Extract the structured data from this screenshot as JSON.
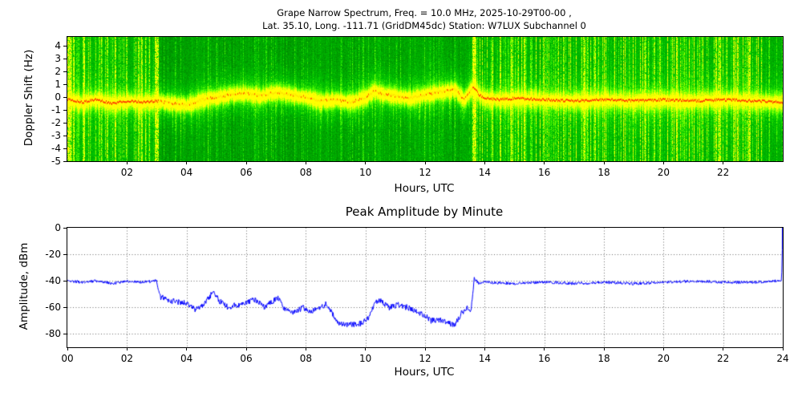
{
  "figure": {
    "background": "#ffffff",
    "spectrogram_colors": {
      "dark_green": "#0e7a00",
      "bright_yellow": "#ffff00",
      "trace_red": "#ff2600"
    },
    "amplitude_line_color": "#0000ff"
  },
  "chart_data": [
    {
      "type": "heatmap",
      "title_line1": "Grape Narrow Spectrum, Freq. = 10.0 MHz, 2025-10-29T00-00 ,",
      "title_line2": "Lat.  35.10, Long. -111.71 (GridDM45dc) Station: W7LUX Subchannel 0",
      "xlabel": "Hours, UTC",
      "ylabel": "Doppler Shift (Hz)",
      "xlim": [
        0,
        24
      ],
      "ylim": [
        -5,
        4.7
      ],
      "xtick_values": [
        2,
        4,
        6,
        8,
        10,
        12,
        14,
        16,
        18,
        20,
        22
      ],
      "xtick_labels": [
        "02",
        "04",
        "06",
        "08",
        "10",
        "12",
        "14",
        "16",
        "18",
        "20",
        "22"
      ],
      "ytick_values": [
        4,
        3,
        2,
        1,
        0,
        -1,
        -2,
        -3,
        -4,
        -5
      ],
      "ytick_labels": [
        "4",
        "3",
        "2",
        "1",
        "0",
        "-1",
        "-2",
        "-3",
        "-4",
        "-5"
      ],
      "colormap": "green-to-yellow, red carrier trace",
      "noisy_intervals_hours": [
        [
          0,
          3.05
        ],
        [
          13.6,
          24
        ]
      ],
      "quiet_interval_hours": [
        3.05,
        13.6
      ],
      "summary": "Doppler spectrogram near 0 Hz carrier; broadband vertical RFI striping before ~03:03 and after ~13:36 UTC; fuzzy yellow carrier band wandering between +1 and -1 Hz during the quiet interval",
      "doppler_trace_hz": [
        [
          0,
          -0.2
        ],
        [
          0.5,
          -0.4
        ],
        [
          1,
          -0.2
        ],
        [
          1.5,
          -0.5
        ],
        [
          2,
          -0.3
        ],
        [
          2.5,
          -0.4
        ],
        [
          3,
          -0.3
        ],
        [
          3.5,
          -0.5
        ],
        [
          4,
          -0.6
        ],
        [
          4.5,
          -0.2
        ],
        [
          5,
          0.0
        ],
        [
          5.5,
          0.2
        ],
        [
          6,
          0.3
        ],
        [
          6.5,
          0.1
        ],
        [
          7,
          0.4
        ],
        [
          7.5,
          0.2
        ],
        [
          8,
          0.0
        ],
        [
          8.5,
          -0.3
        ],
        [
          9,
          -0.2
        ],
        [
          9.5,
          -0.4
        ],
        [
          10,
          0.0
        ],
        [
          10.3,
          0.5
        ],
        [
          10.6,
          0.2
        ],
        [
          11,
          0.1
        ],
        [
          11.5,
          -0.1
        ],
        [
          12,
          0.2
        ],
        [
          12.5,
          0.4
        ],
        [
          13,
          0.6
        ],
        [
          13.3,
          -0.2
        ],
        [
          13.6,
          0.8
        ],
        [
          13.8,
          0.2
        ],
        [
          14,
          -0.1
        ],
        [
          14.5,
          -0.2
        ],
        [
          15,
          -0.1
        ],
        [
          16,
          -0.2
        ],
        [
          17,
          -0.3
        ],
        [
          18,
          -0.2
        ],
        [
          19,
          -0.3
        ],
        [
          20,
          -0.2
        ],
        [
          21,
          -0.3
        ],
        [
          22,
          -0.2
        ],
        [
          23,
          -0.3
        ],
        [
          24,
          -0.4
        ]
      ]
    },
    {
      "type": "line",
      "title": "Peak Amplitude by Minute",
      "xlabel": "Hours, UTC",
      "ylabel": "Amplitude, dBm",
      "xlim": [
        0,
        24
      ],
      "ylim": [
        -90,
        0
      ],
      "xtick_values": [
        0,
        2,
        4,
        6,
        8,
        10,
        12,
        14,
        16,
        18,
        20,
        22,
        24
      ],
      "xtick_labels": [
        "00",
        "02",
        "04",
        "06",
        "08",
        "10",
        "12",
        "14",
        "16",
        "18",
        "20",
        "22",
        "24"
      ],
      "ytick_values": [
        0,
        -20,
        -40,
        -60,
        -80
      ],
      "ytick_labels": [
        "0",
        "-20",
        "-40",
        "-60",
        "-80"
      ],
      "grid": true,
      "legend": "none",
      "series": [
        {
          "name": "peak_amplitude_dBm",
          "keypoints_hour_dbm": [
            [
              0,
              -40
            ],
            [
              0.5,
              -41
            ],
            [
              1,
              -40
            ],
            [
              1.5,
              -42
            ],
            [
              2,
              -40
            ],
            [
              2.5,
              -41
            ],
            [
              3.0,
              -40
            ],
            [
              3.1,
              -52
            ],
            [
              3.5,
              -55
            ],
            [
              4,
              -57
            ],
            [
              4.3,
              -62
            ],
            [
              4.6,
              -57
            ],
            [
              4.9,
              -48
            ],
            [
              5.1,
              -55
            ],
            [
              5.4,
              -60
            ],
            [
              5.7,
              -58
            ],
            [
              6,
              -57
            ],
            [
              6.3,
              -54
            ],
            [
              6.6,
              -60
            ],
            [
              6.9,
              -55
            ],
            [
              7.1,
              -53
            ],
            [
              7.3,
              -62
            ],
            [
              7.6,
              -64
            ],
            [
              7.9,
              -60
            ],
            [
              8.2,
              -63
            ],
            [
              8.5,
              -60
            ],
            [
              8.7,
              -57
            ],
            [
              8.9,
              -65
            ],
            [
              9.1,
              -72
            ],
            [
              9.5,
              -73
            ],
            [
              9.9,
              -72
            ],
            [
              10.1,
              -68
            ],
            [
              10.3,
              -57
            ],
            [
              10.5,
              -55
            ],
            [
              10.8,
              -60
            ],
            [
              11.1,
              -58
            ],
            [
              11.4,
              -60
            ],
            [
              11.7,
              -63
            ],
            [
              12.0,
              -66
            ],
            [
              12.2,
              -70
            ],
            [
              12.5,
              -69
            ],
            [
              12.8,
              -72
            ],
            [
              13.0,
              -73
            ],
            [
              13.2,
              -65
            ],
            [
              13.4,
              -60
            ],
            [
              13.55,
              -62
            ],
            [
              13.65,
              -38
            ],
            [
              13.8,
              -42
            ],
            [
              14,
              -41
            ],
            [
              15,
              -42
            ],
            [
              16,
              -41
            ],
            [
              17,
              -42
            ],
            [
              18,
              -41
            ],
            [
              19,
              -42
            ],
            [
              20,
              -41
            ],
            [
              21,
              -40
            ],
            [
              22,
              -41
            ],
            [
              23,
              -41
            ],
            [
              23.96,
              -40
            ],
            [
              24,
              0
            ]
          ]
        }
      ]
    }
  ]
}
